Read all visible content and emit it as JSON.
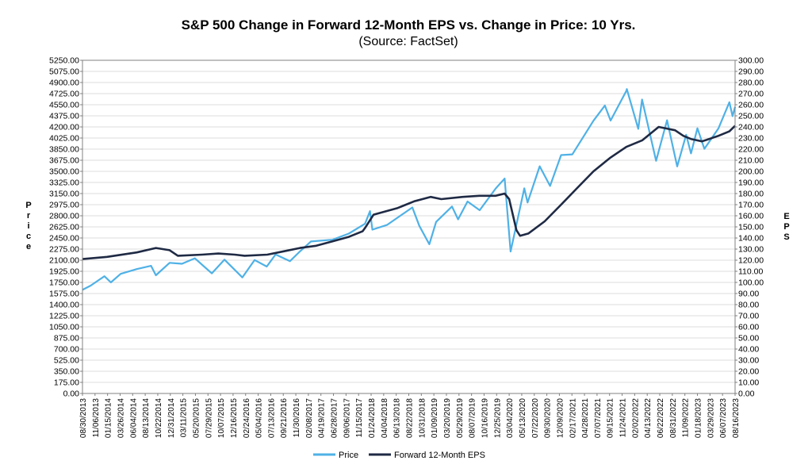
{
  "chart_data": {
    "type": "line",
    "title": "S&P 500 Change in Forward 12-Month EPS vs. Change in Price: 10 Yrs.",
    "subtitle": "(Source: FactSet)",
    "ylabel_left": "Price",
    "ylabel_right": "EPS",
    "ylim_left": [
      0,
      5250
    ],
    "ylim_right": [
      0,
      300
    ],
    "yticks_left": [
      "0.00",
      "175.00",
      "350.00",
      "525.00",
      "700.00",
      "875.00",
      "1050.00",
      "1225.00",
      "1400.00",
      "1575.00",
      "1750.00",
      "1925.00",
      "2100.00",
      "2275.00",
      "2450.00",
      "2625.00",
      "2800.00",
      "2975.00",
      "3150.00",
      "3325.00",
      "3500.00",
      "3675.00",
      "3850.00",
      "4025.00",
      "4200.00",
      "4375.00",
      "4550.00",
      "4725.00",
      "4900.00",
      "5075.00",
      "5250.00"
    ],
    "yticks_right": [
      "0.00",
      "10.00",
      "20.00",
      "30.00",
      "40.00",
      "50.00",
      "60.00",
      "70.00",
      "80.00",
      "90.00",
      "100.00",
      "110.00",
      "120.00",
      "130.00",
      "140.00",
      "150.00",
      "160.00",
      "170.00",
      "180.00",
      "190.00",
      "200.00",
      "210.00",
      "220.00",
      "230.00",
      "240.00",
      "250.00",
      "260.00",
      "270.00",
      "280.00",
      "290.00",
      "300.00"
    ],
    "xticks": [
      "08/30/2013",
      "11/06/2013",
      "01/15/2014",
      "03/26/2014",
      "06/04/2014",
      "08/13/2014",
      "10/22/2014",
      "12/31/2014",
      "03/11/2015",
      "05/20/2015",
      "07/29/2015",
      "10/07/2015",
      "12/16/2015",
      "02/24/2016",
      "05/04/2016",
      "07/13/2016",
      "09/21/2016",
      "11/30/2016",
      "02/08/2017",
      "04/19/2017",
      "06/28/2017",
      "09/06/2017",
      "11/15/2017",
      "01/24/2018",
      "04/04/2018",
      "06/13/2018",
      "08/22/2018",
      "10/31/2018",
      "01/09/2019",
      "03/20/2019",
      "05/29/2019",
      "08/07/2019",
      "10/16/2019",
      "12/25/2019",
      "03/04/2020",
      "05/13/2020",
      "07/22/2020",
      "09/30/2020",
      "12/09/2020",
      "02/17/2021",
      "04/28/2021",
      "07/07/2021",
      "09/15/2021",
      "11/24/2021",
      "02/02/2022",
      "04/13/2022",
      "06/22/2022",
      "08/31/2022",
      "11/09/2022",
      "01/18/2023",
      "03/29/2023",
      "06/07/2023",
      "08/16/2023"
    ],
    "xlim": [
      "2013-08-30",
      "2023-09-01"
    ],
    "grid": true,
    "legend": "bottom",
    "series": [
      {
        "name": "Price",
        "axis": "left",
        "color": "#4fb1e6",
        "points": [
          [
            "2013-08-30",
            1633
          ],
          [
            "2013-10-15",
            1700
          ],
          [
            "2013-12-31",
            1848
          ],
          [
            "2014-02-05",
            1750
          ],
          [
            "2014-04-01",
            1885
          ],
          [
            "2014-06-30",
            1960
          ],
          [
            "2014-09-18",
            2011
          ],
          [
            "2014-10-15",
            1862
          ],
          [
            "2014-12-31",
            2059
          ],
          [
            "2015-03-10",
            2044
          ],
          [
            "2015-05-21",
            2130
          ],
          [
            "2015-08-24",
            1893
          ],
          [
            "2015-11-03",
            2109
          ],
          [
            "2016-02-11",
            1829
          ],
          [
            "2016-04-20",
            2102
          ],
          [
            "2016-06-27",
            2000
          ],
          [
            "2016-08-15",
            2190
          ],
          [
            "2016-11-04",
            2085
          ],
          [
            "2016-12-30",
            2239
          ],
          [
            "2017-03-01",
            2395
          ],
          [
            "2017-06-30",
            2423
          ],
          [
            "2017-09-29",
            2519
          ],
          [
            "2017-12-29",
            2674
          ],
          [
            "2018-01-26",
            2872
          ],
          [
            "2018-02-08",
            2581
          ],
          [
            "2018-05-01",
            2655
          ],
          [
            "2018-09-20",
            2931
          ],
          [
            "2018-10-29",
            2641
          ],
          [
            "2018-12-24",
            2351
          ],
          [
            "2019-01-31",
            2704
          ],
          [
            "2019-04-30",
            2946
          ],
          [
            "2019-06-03",
            2744
          ],
          [
            "2019-07-26",
            3025
          ],
          [
            "2019-10-02",
            2887
          ],
          [
            "2019-12-31",
            3231
          ],
          [
            "2020-02-19",
            3386
          ],
          [
            "2020-03-23",
            2237
          ],
          [
            "2020-06-08",
            3232
          ],
          [
            "2020-06-26",
            3009
          ],
          [
            "2020-09-02",
            3580
          ],
          [
            "2020-10-30",
            3270
          ],
          [
            "2020-12-31",
            3756
          ],
          [
            "2021-03-04",
            3768
          ],
          [
            "2021-06-30",
            4297
          ],
          [
            "2021-09-02",
            4537
          ],
          [
            "2021-10-04",
            4300
          ],
          [
            "2021-12-31",
            4766
          ],
          [
            "2022-01-03",
            4796
          ],
          [
            "2022-03-08",
            4170
          ],
          [
            "2022-03-29",
            4631
          ],
          [
            "2022-06-16",
            3666
          ],
          [
            "2022-08-16",
            4305
          ],
          [
            "2022-10-12",
            3577
          ],
          [
            "2022-12-01",
            4076
          ],
          [
            "2022-12-28",
            3783
          ],
          [
            "2023-02-02",
            4179
          ],
          [
            "2023-03-13",
            3855
          ],
          [
            "2023-05-31",
            4179
          ],
          [
            "2023-07-31",
            4589
          ],
          [
            "2023-08-18",
            4370
          ],
          [
            "2023-09-01",
            4515
          ]
        ]
      },
      {
        "name": "Forward 12-Month EPS",
        "axis": "right",
        "color": "#1f2a44",
        "points": [
          [
            "2013-08-30",
            121
          ],
          [
            "2014-01-15",
            123
          ],
          [
            "2014-06-30",
            127
          ],
          [
            "2014-10-15",
            131
          ],
          [
            "2014-12-31",
            129
          ],
          [
            "2015-02-15",
            124
          ],
          [
            "2015-06-30",
            125
          ],
          [
            "2015-09-30",
            126
          ],
          [
            "2015-12-31",
            125
          ],
          [
            "2016-02-24",
            124
          ],
          [
            "2016-06-30",
            125
          ],
          [
            "2016-09-30",
            128
          ],
          [
            "2016-12-30",
            131
          ],
          [
            "2017-03-31",
            133
          ],
          [
            "2017-06-30",
            137
          ],
          [
            "2017-09-29",
            141
          ],
          [
            "2017-12-15",
            146
          ],
          [
            "2017-12-29",
            149
          ],
          [
            "2018-02-15",
            161
          ],
          [
            "2018-06-30",
            167
          ],
          [
            "2018-09-30",
            173
          ],
          [
            "2018-12-31",
            177
          ],
          [
            "2019-03-01",
            175
          ],
          [
            "2019-06-30",
            177
          ],
          [
            "2019-09-30",
            178
          ],
          [
            "2019-12-31",
            178
          ],
          [
            "2020-02-19",
            180
          ],
          [
            "2020-03-15",
            175
          ],
          [
            "2020-04-25",
            147
          ],
          [
            "2020-05-15",
            142
          ],
          [
            "2020-06-30",
            144
          ],
          [
            "2020-09-30",
            155
          ],
          [
            "2020-12-31",
            170
          ],
          [
            "2021-03-31",
            185
          ],
          [
            "2021-06-30",
            200
          ],
          [
            "2021-09-30",
            212
          ],
          [
            "2021-12-31",
            222
          ],
          [
            "2022-03-31",
            228
          ],
          [
            "2022-06-30",
            240
          ],
          [
            "2022-09-30",
            237
          ],
          [
            "2022-11-15",
            232
          ],
          [
            "2022-12-31",
            229
          ],
          [
            "2023-02-28",
            227
          ],
          [
            "2023-05-31",
            232
          ],
          [
            "2023-07-31",
            236
          ],
          [
            "2023-09-01",
            241
          ]
        ]
      }
    ]
  }
}
